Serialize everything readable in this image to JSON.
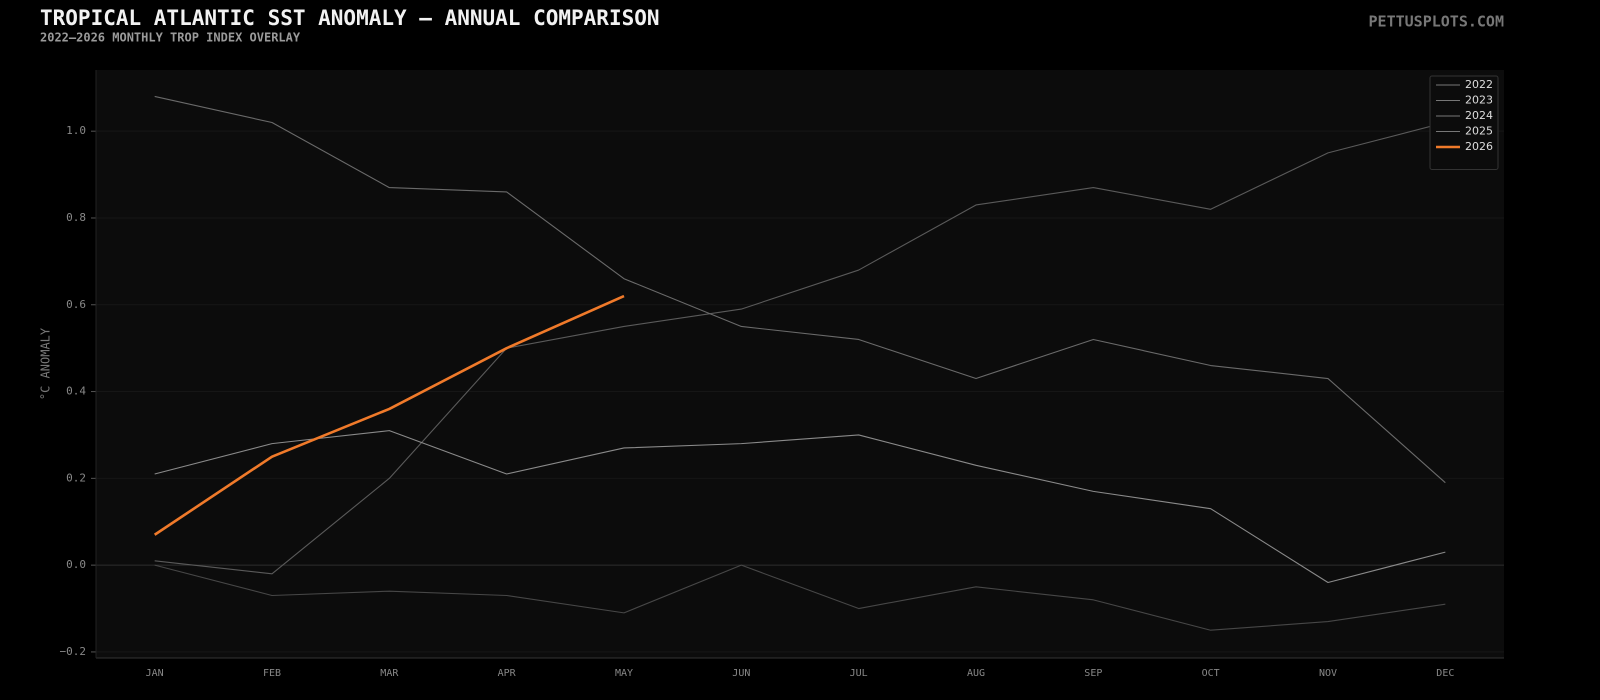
{
  "chart_data": {
    "type": "line",
    "title": "TROPICAL ATLANTIC SST ANOMALY — ANNUAL COMPARISON",
    "subtitle": "2022–2026 MONTHLY TROP INDEX OVERLAY",
    "brand": "PETTUSPLOTS.COM",
    "y_label": "°C ANOMALY",
    "categories": [
      "JAN",
      "FEB",
      "MAR",
      "APR",
      "MAY",
      "JUN",
      "JUL",
      "AUG",
      "SEP",
      "OCT",
      "NOV",
      "DEC"
    ],
    "series": [
      {
        "name": "2022",
        "color": "#474747",
        "values": [
          0.0,
          -0.07,
          -0.06,
          -0.07,
          -0.11,
          0.0,
          -0.1,
          -0.05,
          -0.08,
          -0.15,
          -0.13,
          -0.09
        ]
      },
      {
        "name": "2023",
        "color": "#5a5a5a",
        "values": [
          0.01,
          -0.02,
          0.2,
          0.5,
          0.55,
          0.59,
          0.68,
          0.83,
          0.87,
          0.82,
          0.95,
          1.02
        ]
      },
      {
        "name": "2024",
        "color": "#6a6a6a",
        "values": [
          1.08,
          1.02,
          0.87,
          0.86,
          0.66,
          0.55,
          0.52,
          0.43,
          0.52,
          0.46,
          0.43,
          0.19
        ]
      },
      {
        "name": "2025",
        "color": "#8a8a8a",
        "values": [
          0.21,
          0.28,
          0.31,
          0.21,
          0.27,
          0.28,
          0.3,
          0.23,
          0.17,
          0.13,
          -0.04,
          0.03
        ]
      },
      {
        "name": "2026",
        "color": "#f07a2a",
        "values": [
          0.07,
          0.25,
          0.36,
          0.5,
          0.62,
          null,
          null,
          null,
          null,
          null,
          null,
          null
        ]
      }
    ],
    "ylim": [
      -0.214,
      1.141
    ],
    "yticks": [
      {
        "value": -0.2,
        "label": "−0.2"
      },
      {
        "value": 0,
        "label": "0.0"
      },
      0.2,
      0.4,
      0.6,
      0.8,
      {
        "value": 1,
        "label": "1.0"
      }
    ],
    "grid": true,
    "legend": "upper right"
  }
}
